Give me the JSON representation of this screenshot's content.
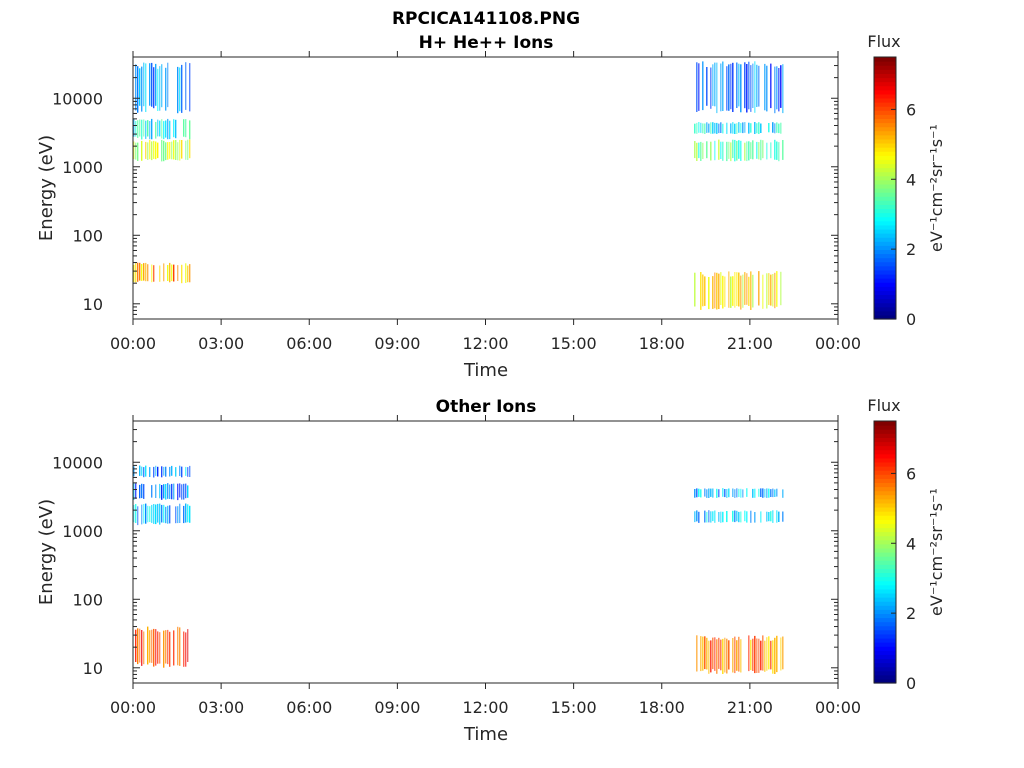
{
  "figure": {
    "file_title": "RPCICA141108.PNG"
  },
  "chart_data": [
    {
      "type": "heatmap",
      "title": "H+ He++ Ions",
      "xlabel": "Time",
      "ylabel": "Energy (eV)",
      "x_tick_labels": [
        "00:00",
        "03:00",
        "06:00",
        "09:00",
        "12:00",
        "15:00",
        "18:00",
        "21:00",
        "00:00"
      ],
      "xlim_hours": [
        0,
        24
      ],
      "y_scale": "log",
      "y_tick_labels": [
        "10",
        "100",
        "1000",
        "10000"
      ],
      "y_tick_values": [
        10,
        100,
        1000,
        10000
      ],
      "ylim": [
        6,
        40000
      ],
      "colorbar": {
        "title": "Flux",
        "label": "eV⁻¹cm⁻²sr⁻¹s⁻¹",
        "tick_labels": [
          "0",
          "2",
          "4",
          "6"
        ],
        "tick_values": [
          0,
          2,
          4,
          6
        ],
        "range": [
          0,
          7.5
        ],
        "colormap": "jet"
      },
      "segments": [
        {
          "time_range_hours": [
            0.0,
            1.95
          ],
          "bands": [
            {
              "energy_range": [
                20,
                40
              ],
              "flux": 5.3
            },
            {
              "energy_range": [
                1200,
                2500
              ],
              "flux": 4.2
            },
            {
              "energy_range": [
                2500,
                5000
              ],
              "flux": 2.8
            },
            {
              "energy_range": [
                6000,
                35000
              ],
              "flux": 2.0
            }
          ]
        },
        {
          "time_range_hours": [
            19.1,
            22.1
          ],
          "bands": [
            {
              "energy_range": [
                8,
                30
              ],
              "flux": 4.8
            },
            {
              "energy_range": [
                1200,
                2500
              ],
              "flux": 3.5
            },
            {
              "energy_range": [
                3000,
                4500
              ],
              "flux": 2.6
            },
            {
              "energy_range": [
                6000,
                35000
              ],
              "flux": 1.8
            }
          ]
        }
      ]
    },
    {
      "type": "heatmap",
      "title": "Other Ions",
      "xlabel": "Time",
      "ylabel": "Energy (eV)",
      "x_tick_labels": [
        "00:00",
        "03:00",
        "06:00",
        "09:00",
        "12:00",
        "15:00",
        "18:00",
        "21:00",
        "00:00"
      ],
      "xlim_hours": [
        0,
        24
      ],
      "y_scale": "log",
      "y_tick_labels": [
        "10",
        "100",
        "1000",
        "10000"
      ],
      "y_tick_values": [
        10,
        100,
        1000,
        10000
      ],
      "ylim": [
        6,
        40000
      ],
      "colorbar": {
        "title": "Flux",
        "label": "eV⁻¹cm⁻²sr⁻¹s⁻¹",
        "tick_labels": [
          "0",
          "2",
          "4",
          "6"
        ],
        "tick_values": [
          0,
          2,
          4,
          6
        ],
        "range": [
          0,
          7.5
        ],
        "colormap": "jet"
      },
      "segments": [
        {
          "time_range_hours": [
            0.0,
            1.95
          ],
          "bands": [
            {
              "energy_range": [
                10,
                40
              ],
              "flux": 6.0
            },
            {
              "energy_range": [
                1200,
                2500
              ],
              "flux": 2.3
            },
            {
              "energy_range": [
                2800,
                5000
              ],
              "flux": 1.8
            },
            {
              "energy_range": [
                6000,
                9000
              ],
              "flux": 2.0
            }
          ]
        },
        {
          "time_range_hours": [
            19.1,
            22.1
          ],
          "bands": [
            {
              "energy_range": [
                8,
                30
              ],
              "flux": 5.6
            },
            {
              "energy_range": [
                1300,
                2000
              ],
              "flux": 2.4
            },
            {
              "energy_range": [
                3000,
                4200
              ],
              "flux": 2.2
            }
          ]
        }
      ]
    }
  ]
}
